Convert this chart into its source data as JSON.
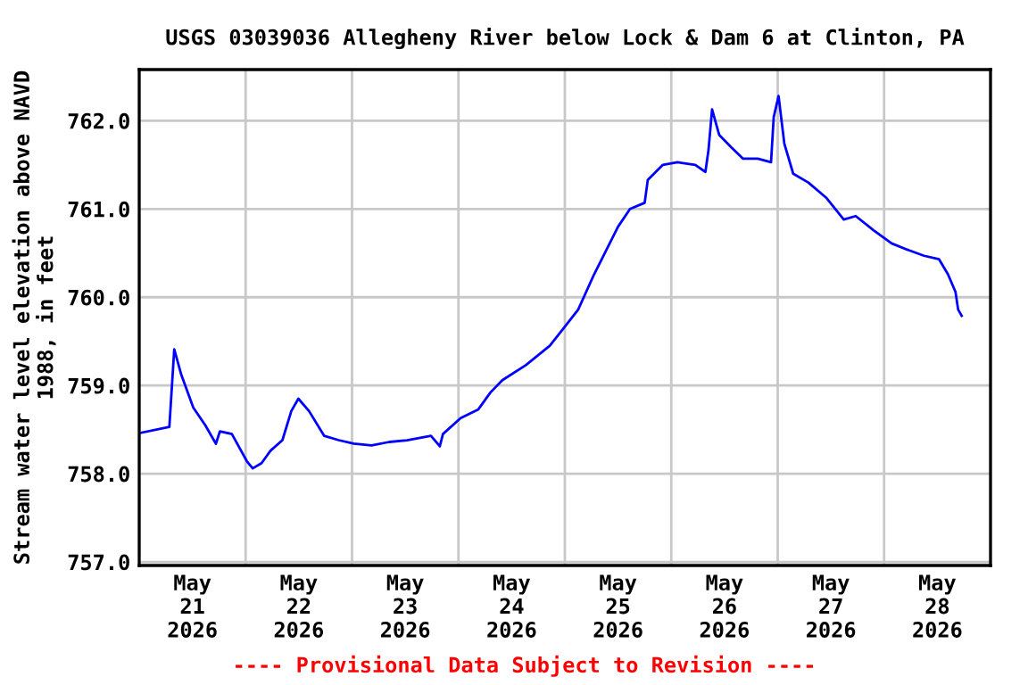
{
  "chart_data": {
    "type": "line",
    "title": "USGS 03039036 Allegheny River below Lock & Dam 6 at Clinton, PA",
    "ylabel": "Stream water level elevation above NAVD\n1988, in feet",
    "annotations": [
      "---- Provisional Data Subject to Revision ----"
    ],
    "series": [
      {
        "color": "#0000ff",
        "x": [
          "2026-05-21T00:06",
          "2026-05-21T06:48",
          "2026-05-21T07:54",
          "2026-05-21T09:30",
          "2026-05-21T12:12",
          "2026-05-21T14:54",
          "2026-05-21T17:18",
          "2026-05-21T18:12",
          "2026-05-21T20:54",
          "2026-05-22T00:18",
          "2026-05-22T01:36",
          "2026-05-22T03:36",
          "2026-05-22T05:36",
          "2026-05-22T08:18",
          "2026-05-22T10:18",
          "2026-05-22T11:54",
          "2026-05-22T14:18",
          "2026-05-22T17:42",
          "2026-05-22T21:00",
          "2026-05-23T00:24",
          "2026-05-23T04:24",
          "2026-05-23T08:24",
          "2026-05-23T12:24",
          "2026-05-23T17:48",
          "2026-05-23T19:48",
          "2026-05-23T20:30",
          "2026-05-24T00:30",
          "2026-05-24T04:30",
          "2026-05-24T07:12",
          "2026-05-24T09:54",
          "2026-05-24T15:12",
          "2026-05-24T20:36",
          "2026-05-24T23:54",
          "2026-05-25T03:00",
          "2026-05-25T06:36",
          "2026-05-25T09:18",
          "2026-05-25T12:00",
          "2026-05-25T14:42",
          "2026-05-25T18:00",
          "2026-05-25T18:42",
          "2026-05-25T22:06",
          "2026-05-26T01:24",
          "2026-05-26T05:24",
          "2026-05-26T07:42",
          "2026-05-26T08:24",
          "2026-05-26T09:12",
          "2026-05-26T10:48",
          "2026-05-26T13:30",
          "2026-05-26T16:12",
          "2026-05-26T19:30",
          "2026-05-26T22:30",
          "2026-05-26T23:06",
          "2026-05-27T00:12",
          "2026-05-27T01:30",
          "2026-05-27T03:30",
          "2026-05-27T06:54",
          "2026-05-27T10:54",
          "2026-05-27T14:54",
          "2026-05-27T17:36",
          "2026-05-27T21:36",
          "2026-05-28T01:42",
          "2026-05-28T05:42",
          "2026-05-28T09:00",
          "2026-05-28T12:24",
          "2026-05-28T14:24",
          "2026-05-28T16:06",
          "2026-05-28T16:42",
          "2026-05-28T17:30"
        ],
        "values": [
          758.46,
          758.53,
          759.41,
          759.12,
          758.75,
          758.55,
          758.34,
          758.48,
          758.45,
          758.14,
          758.06,
          758.12,
          758.26,
          758.38,
          758.71,
          758.85,
          758.71,
          758.43,
          758.38,
          758.34,
          758.32,
          758.36,
          758.38,
          758.43,
          758.31,
          758.45,
          758.63,
          758.73,
          758.92,
          759.06,
          759.23,
          759.45,
          759.66,
          759.86,
          760.26,
          760.53,
          760.8,
          761.0,
          761.07,
          761.33,
          761.5,
          761.53,
          761.5,
          761.42,
          761.67,
          762.13,
          761.84,
          761.7,
          761.57,
          761.57,
          761.53,
          762.04,
          762.28,
          761.74,
          761.4,
          761.3,
          761.13,
          760.88,
          760.92,
          760.76,
          760.61,
          760.53,
          760.47,
          760.43,
          760.26,
          760.06,
          759.86,
          759.79
        ]
      }
    ],
    "xlim": [
      "2026-05-21T00:00",
      "2026-05-29T00:00"
    ],
    "xticks": [
      {
        "value": "2026-05-21T12:00",
        "label": "May\n21\n2026"
      },
      {
        "value": "2026-05-22T12:00",
        "label": "May\n22\n2026"
      },
      {
        "value": "2026-05-23T12:00",
        "label": "May\n23\n2026"
      },
      {
        "value": "2026-05-24T12:00",
        "label": "May\n24\n2026"
      },
      {
        "value": "2026-05-25T12:00",
        "label": "May\n25\n2026"
      },
      {
        "value": "2026-05-26T12:00",
        "label": "May\n26\n2026"
      },
      {
        "value": "2026-05-27T12:00",
        "label": "May\n27\n2026"
      },
      {
        "value": "2026-05-28T12:00",
        "label": "May\n28\n2026"
      },
      {
        "value": "2026-05-22T00:00",
        "label": null
      },
      {
        "value": "2026-05-23T00:00",
        "label": null
      },
      {
        "value": "2026-05-24T00:00",
        "label": null
      },
      {
        "value": "2026-05-25T00:00",
        "label": null
      },
      {
        "value": "2026-05-26T00:00",
        "label": null
      },
      {
        "value": "2026-05-27T00:00",
        "label": null
      },
      {
        "value": "2026-05-28T00:00",
        "label": null
      }
    ],
    "ylim": [
      756.96,
      762.58
    ],
    "yticks": [
      {
        "value": 757,
        "label": "757.0"
      },
      {
        "value": 758,
        "label": "758.0"
      },
      {
        "value": 759,
        "label": "759.0"
      },
      {
        "value": 760,
        "label": "760.0"
      },
      {
        "value": 761,
        "label": "761.0"
      },
      {
        "value": 762,
        "label": "762.0"
      }
    ],
    "grid": true,
    "line_style": "solid",
    "marker": "none"
  }
}
